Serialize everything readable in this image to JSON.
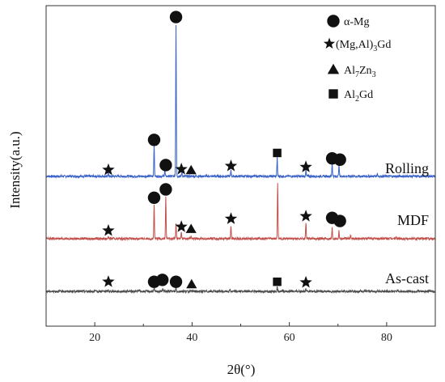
{
  "chart_data": {
    "type": "line",
    "title": "",
    "xlabel": "2θ(°)",
    "ylabel": "Intensity(a.u.)",
    "xlim": [
      10,
      90
    ],
    "x_ticks": [
      20,
      40,
      60,
      80
    ],
    "grid": false,
    "legend_position": "top-right",
    "legend": [
      {
        "symbol": "circle",
        "label": "α-Mg",
        "parts": [
          {
            "t": "α-Mg"
          }
        ]
      },
      {
        "symbol": "star",
        "label": "(Mg,Al)3Gd",
        "parts": [
          {
            "t": "(Mg,Al)"
          },
          {
            "t": "3",
            "sub": true
          },
          {
            "t": "Gd"
          }
        ]
      },
      {
        "symbol": "triangle",
        "label": "Al7Zn3",
        "parts": [
          {
            "t": "Al"
          },
          {
            "t": "7",
            "sub": true
          },
          {
            "t": "Zn"
          },
          {
            "t": "3",
            "sub": true
          }
        ]
      },
      {
        "symbol": "square",
        "label": "Al2Gd",
        "parts": [
          {
            "t": "Al"
          },
          {
            "t": "2",
            "sub": true
          },
          {
            "t": "Gd"
          }
        ]
      }
    ],
    "series": [
      {
        "name": "Rolling",
        "color": "#3b63c8",
        "baseline": 0.36,
        "peaks": [
          {
            "x": 22.8,
            "h": 0.01
          },
          {
            "x": 32.2,
            "h": 0.1
          },
          {
            "x": 34.4,
            "h": 0.02
          },
          {
            "x": 36.7,
            "h": 0.475
          },
          {
            "x": 37.9,
            "h": 0.015
          },
          {
            "x": 48.0,
            "h": 0.02
          },
          {
            "x": 57.5,
            "h": 0.058
          },
          {
            "x": 63.4,
            "h": 0.02
          },
          {
            "x": 68.8,
            "h": 0.042
          },
          {
            "x": 70.2,
            "h": 0.038
          },
          {
            "x": 78.1,
            "h": 0.01
          }
        ],
        "markers": [
          {
            "x": 22.8,
            "y": 0.38,
            "symbol": "star"
          },
          {
            "x": 32.2,
            "y": 0.474,
            "symbol": "circle"
          },
          {
            "x": 34.6,
            "y": 0.395,
            "symbol": "circle"
          },
          {
            "x": 36.7,
            "y": 0.858,
            "symbol": "circle"
          },
          {
            "x": 37.8,
            "y": 0.382,
            "symbol": "star"
          },
          {
            "x": 39.8,
            "y": 0.379,
            "symbol": "triangle"
          },
          {
            "x": 48.0,
            "y": 0.392,
            "symbol": "star"
          },
          {
            "x": 57.5,
            "y": 0.433,
            "symbol": "square"
          },
          {
            "x": 63.4,
            "y": 0.389,
            "symbol": "star"
          },
          {
            "x": 68.8,
            "y": 0.416,
            "symbol": "circle"
          },
          {
            "x": 70.4,
            "y": 0.412,
            "symbol": "circle"
          }
        ]
      },
      {
        "name": "MDF",
        "color": "#c2504a",
        "baseline": 0.165,
        "peaks": [
          {
            "x": 22.8,
            "h": 0.008
          },
          {
            "x": 32.2,
            "h": 0.105
          },
          {
            "x": 34.6,
            "h": 0.13
          },
          {
            "x": 36.7,
            "h": 0.048
          },
          {
            "x": 37.8,
            "h": 0.02
          },
          {
            "x": 39.8,
            "h": 0.008
          },
          {
            "x": 48.0,
            "h": 0.04
          },
          {
            "x": 57.6,
            "h": 0.175
          },
          {
            "x": 63.4,
            "h": 0.05
          },
          {
            "x": 68.8,
            "h": 0.034
          },
          {
            "x": 70.2,
            "h": 0.025
          },
          {
            "x": 72.6,
            "h": 0.012
          },
          {
            "x": 81.9,
            "h": 0.006
          }
        ],
        "markers": [
          {
            "x": 22.8,
            "y": 0.19,
            "symbol": "star"
          },
          {
            "x": 32.2,
            "y": 0.293,
            "symbol": "circle"
          },
          {
            "x": 34.6,
            "y": 0.319,
            "symbol": "circle"
          },
          {
            "x": 37.8,
            "y": 0.202,
            "symbol": "star"
          },
          {
            "x": 39.8,
            "y": 0.195,
            "symbol": "triangle"
          },
          {
            "x": 48.0,
            "y": 0.227,
            "symbol": "star"
          },
          {
            "x": 63.4,
            "y": 0.235,
            "symbol": "star"
          },
          {
            "x": 68.8,
            "y": 0.23,
            "symbol": "circle"
          },
          {
            "x": 70.4,
            "y": 0.22,
            "symbol": "circle"
          }
        ]
      },
      {
        "name": "As-cast",
        "color": "#4d4d4d",
        "baseline": 0.0,
        "peaks": [
          {
            "x": 22.8,
            "h": 0.004
          },
          {
            "x": 29.2,
            "h": 0.006
          },
          {
            "x": 32.2,
            "h": 0.01
          },
          {
            "x": 34.0,
            "h": 0.01
          },
          {
            "x": 36.7,
            "h": 0.012
          },
          {
            "x": 47.8,
            "h": 0.006
          },
          {
            "x": 57.5,
            "h": 0.012
          },
          {
            "x": 63.4,
            "h": 0.008
          }
        ],
        "markers": [
          {
            "x": 22.8,
            "y": 0.03,
            "symbol": "star"
          },
          {
            "x": 32.2,
            "y": 0.03,
            "symbol": "circle"
          },
          {
            "x": 33.9,
            "y": 0.036,
            "symbol": "circle"
          },
          {
            "x": 36.7,
            "y": 0.03,
            "symbol": "circle"
          },
          {
            "x": 39.9,
            "y": 0.022,
            "symbol": "triangle"
          },
          {
            "x": 57.5,
            "y": 0.03,
            "symbol": "square"
          },
          {
            "x": 63.4,
            "y": 0.028,
            "symbol": "star"
          }
        ]
      }
    ]
  }
}
